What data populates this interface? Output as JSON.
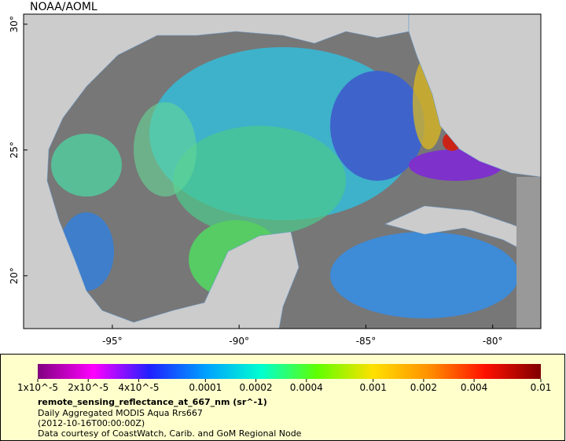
{
  "map": {
    "credit": "NOAA/AOML",
    "xlim": [
      -98.5,
      -78.1
    ],
    "ylim": [
      17.9,
      30.4
    ],
    "xticks": [
      {
        "value": -95,
        "label": "-95°"
      },
      {
        "value": -90,
        "label": "-90°"
      },
      {
        "value": -85,
        "label": "-85°"
      },
      {
        "value": -80,
        "label": "-80°"
      }
    ],
    "yticks": [
      {
        "value": 20,
        "label": "20°"
      },
      {
        "value": 25,
        "label": "25°"
      },
      {
        "value": 30,
        "label": "30°"
      }
    ]
  },
  "colorbar": {
    "scale": "log",
    "lim": [
      1e-05,
      0.01
    ],
    "ticks": [
      {
        "value": 1e-05,
        "label": "1x10^-5"
      },
      {
        "value": 2e-05,
        "label": "2x10^-5"
      },
      {
        "value": 4e-05,
        "label": "4x10^-5"
      },
      0.0001,
      0.0002,
      0.0004,
      0.001,
      0.002,
      0.004,
      0.01
    ],
    "colors": [
      "#80007f",
      "#ff00ff",
      "#2020ff",
      "#00a0ff",
      "#00ffd0",
      "#60ff00",
      "#ffe000",
      "#ff9000",
      "#ff1000",
      "#800000"
    ]
  },
  "caption": {
    "title": "remote_sensing_reflectance_at_667_nm (sr^-1)",
    "lines": [
      "Daily Aggregated MODIS Aqua Rrs667",
      "(2012-10-16T00:00:00Z)",
      "Data courtesy of CoastWatch, Carib. and GoM Regional Node"
    ]
  }
}
